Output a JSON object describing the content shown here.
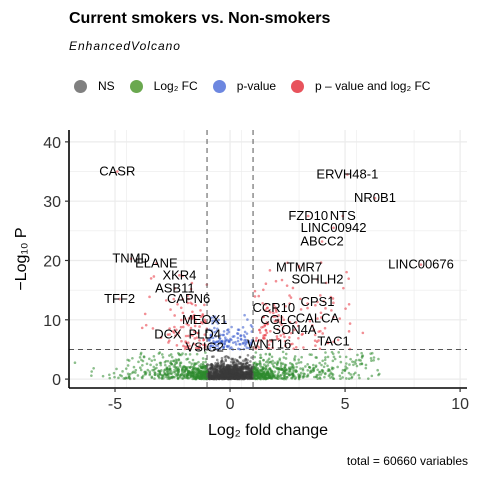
{
  "title": "Current smokers vs. Non-smokers",
  "subtitle": "EnhancedVolcano",
  "caption": "total = 60660 variables",
  "legend": [
    {
      "label": "NS",
      "color": "#808080"
    },
    {
      "label": "Log₂ FC",
      "color": "#6aa84f"
    },
    {
      "label": "p-value",
      "color": "#6d87e0"
    },
    {
      "label": "p – value and log₂ FC",
      "color": "#e8535c"
    }
  ],
  "colors": {
    "ns": "#3a3a3a",
    "fc": "#2e8b2e",
    "p": "#3355cc",
    "both": "#e8323c",
    "grid": "#ebebeb",
    "threshold": "#555555"
  },
  "chart_data": {
    "type": "scatter",
    "title": "Current smokers vs. Non-smokers",
    "subtitle": "EnhancedVolcano",
    "xlabel": "Log₂ fold change",
    "ylabel": "−Log₁₀ P",
    "xlim": [
      -7,
      10.3
    ],
    "ylim": [
      -1.5,
      42
    ],
    "xticks": [
      -5,
      0,
      5,
      10
    ],
    "yticks": [
      0,
      10,
      20,
      30,
      40
    ],
    "grid": true,
    "legend_position": "top",
    "thresholds": {
      "log2fc": [
        -1,
        1
      ],
      "neg_log10_p": 5
    },
    "total_variables": 60660,
    "labeled_genes": [
      {
        "name": "CASR",
        "x": -4.9,
        "y": 35
      },
      {
        "name": "ERVH48-1",
        "x": 5.1,
        "y": 34.5
      },
      {
        "name": "NR0B1",
        "x": 6.3,
        "y": 30.5
      },
      {
        "name": "FZD10",
        "x": 3.4,
        "y": 27.5
      },
      {
        "name": "NTS",
        "x": 4.9,
        "y": 27.5
      },
      {
        "name": "LINC00942",
        "x": 4.5,
        "y": 25.5
      },
      {
        "name": "ABCC2",
        "x": 4.0,
        "y": 23.2
      },
      {
        "name": "TNMD",
        "x": -4.3,
        "y": 20.3
      },
      {
        "name": "ELANE",
        "x": -3.2,
        "y": 19.5
      },
      {
        "name": "MTMR7",
        "x": 3.0,
        "y": 18.8
      },
      {
        "name": "LINC00676",
        "x": 8.3,
        "y": 19.3
      },
      {
        "name": "XKR4",
        "x": -2.2,
        "y": 17.5
      },
      {
        "name": "SOHLH2",
        "x": 3.8,
        "y": 16.8
      },
      {
        "name": "ASB11",
        "x": -2.4,
        "y": 15.3
      },
      {
        "name": "TFF2",
        "x": -4.8,
        "y": 13.5
      },
      {
        "name": "CAPN6",
        "x": -1.8,
        "y": 13.5
      },
      {
        "name": "CPS1",
        "x": 3.8,
        "y": 13.0
      },
      {
        "name": "CCR10",
        "x": 1.9,
        "y": 12.0
      },
      {
        "name": "MEOX1",
        "x": -1.1,
        "y": 10.0
      },
      {
        "name": "CGLC",
        "x": 2.1,
        "y": 10.0
      },
      {
        "name": "CALCA",
        "x": 3.8,
        "y": 10.2
      },
      {
        "name": "SON4A",
        "x": 2.8,
        "y": 8.3
      },
      {
        "name": "DCX",
        "x": -2.7,
        "y": 7.5
      },
      {
        "name": "PLD4",
        "x": -1.1,
        "y": 7.5
      },
      {
        "name": "TAC1",
        "x": 4.5,
        "y": 6.3
      },
      {
        "name": "VSIG2",
        "x": -1.1,
        "y": 5.3
      },
      {
        "name": "WNT16",
        "x": 1.7,
        "y": 5.8
      }
    ]
  }
}
